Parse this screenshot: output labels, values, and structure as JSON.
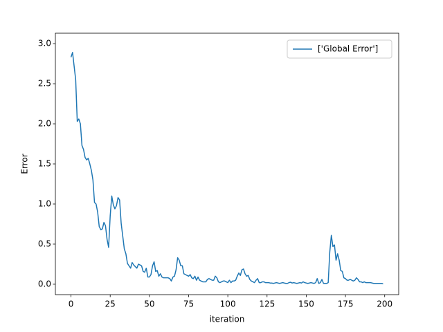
{
  "chart_data": {
    "type": "line",
    "xlabel": "iteration",
    "ylabel": "Error",
    "legend": "upper right",
    "x": [
      0,
      1,
      2,
      3,
      4,
      5,
      6,
      7,
      8,
      9,
      10,
      11,
      12,
      13,
      14,
      15,
      16,
      17,
      18,
      19,
      20,
      21,
      22,
      23,
      24,
      25,
      26,
      27,
      28,
      29,
      30,
      31,
      32,
      33,
      34,
      35,
      36,
      37,
      38,
      39,
      40,
      41,
      42,
      43,
      44,
      45,
      46,
      47,
      48,
      49,
      50,
      51,
      52,
      53,
      54,
      55,
      56,
      57,
      58,
      59,
      60,
      61,
      62,
      63,
      64,
      65,
      66,
      67,
      68,
      69,
      70,
      71,
      72,
      73,
      74,
      75,
      76,
      77,
      78,
      79,
      80,
      81,
      82,
      83,
      84,
      85,
      86,
      87,
      88,
      89,
      90,
      91,
      92,
      93,
      94,
      95,
      96,
      97,
      98,
      99,
      100,
      101,
      102,
      103,
      104,
      105,
      106,
      107,
      108,
      109,
      110,
      111,
      112,
      113,
      114,
      115,
      116,
      117,
      118,
      119,
      120,
      121,
      122,
      123,
      124,
      125,
      126,
      127,
      128,
      129,
      130,
      131,
      132,
      133,
      134,
      135,
      136,
      137,
      138,
      139,
      140,
      141,
      142,
      143,
      144,
      145,
      146,
      147,
      148,
      149,
      150,
      151,
      152,
      153,
      154,
      155,
      156,
      157,
      158,
      159,
      160,
      161,
      162,
      163,
      164,
      165,
      166,
      167,
      168,
      169,
      170,
      171,
      172,
      173,
      174,
      175,
      176,
      177,
      178,
      179,
      180,
      181,
      182,
      183,
      184,
      185,
      186,
      187,
      188,
      189,
      190,
      191,
      192,
      193,
      194,
      195,
      196,
      197,
      198,
      199
    ],
    "series": [
      {
        "name": "['Global Error']",
        "color": "#1f77b4",
        "values": [
          2.83,
          2.89,
          2.72,
          2.55,
          2.03,
          2.06,
          2.0,
          1.73,
          1.68,
          1.58,
          1.55,
          1.57,
          1.5,
          1.42,
          1.3,
          1.02,
          1.0,
          0.9,
          0.72,
          0.68,
          0.69,
          0.77,
          0.73,
          0.56,
          0.46,
          0.85,
          1.1,
          0.99,
          0.94,
          0.98,
          1.08,
          1.05,
          0.76,
          0.6,
          0.44,
          0.38,
          0.26,
          0.23,
          0.2,
          0.27,
          0.24,
          0.22,
          0.2,
          0.25,
          0.24,
          0.23,
          0.16,
          0.15,
          0.2,
          0.09,
          0.09,
          0.12,
          0.23,
          0.28,
          0.16,
          0.17,
          0.1,
          0.13,
          0.09,
          0.08,
          0.08,
          0.08,
          0.08,
          0.07,
          0.04,
          0.09,
          0.1,
          0.18,
          0.33,
          0.3,
          0.23,
          0.23,
          0.13,
          0.12,
          0.11,
          0.1,
          0.12,
          0.08,
          0.07,
          0.1,
          0.05,
          0.09,
          0.05,
          0.04,
          0.03,
          0.03,
          0.03,
          0.06,
          0.07,
          0.06,
          0.05,
          0.05,
          0.1,
          0.08,
          0.03,
          0.02,
          0.03,
          0.04,
          0.04,
          0.03,
          0.02,
          0.05,
          0.02,
          0.04,
          0.04,
          0.05,
          0.1,
          0.14,
          0.11,
          0.18,
          0.19,
          0.13,
          0.1,
          0.11,
          0.06,
          0.04,
          0.03,
          0.02,
          0.05,
          0.07,
          0.02,
          0.02,
          0.03,
          0.03,
          0.02,
          0.02,
          0.02,
          0.015,
          0.015,
          0.01,
          0.015,
          0.02,
          0.015,
          0.01,
          0.015,
          0.02,
          0.015,
          0.01,
          0.01,
          0.02,
          0.025,
          0.015,
          0.02,
          0.015,
          0.01,
          0.015,
          0.02,
          0.015,
          0.03,
          0.02,
          0.015,
          0.01,
          0.015,
          0.02,
          0.015,
          0.01,
          0.02,
          0.07,
          0.01,
          0.02,
          0.06,
          0.01,
          0.01,
          0.01,
          0.02,
          0.4,
          0.61,
          0.47,
          0.49,
          0.3,
          0.38,
          0.3,
          0.17,
          0.16,
          0.08,
          0.07,
          0.05,
          0.05,
          0.06,
          0.05,
          0.04,
          0.05,
          0.08,
          0.06,
          0.03,
          0.03,
          0.02,
          0.03,
          0.02,
          0.02,
          0.02,
          0.02,
          0.015,
          0.01,
          0.01,
          0.01,
          0.01,
          0.01,
          0.01,
          0.005
        ]
      }
    ],
    "xlim": [
      -9.95,
      208.95
    ],
    "xticks": [
      0,
      25,
      50,
      75,
      100,
      125,
      150,
      175,
      200
    ],
    "ylim": [
      -0.13,
      3.13
    ],
    "yticks": [
      {
        "value": 0,
        "label": "0.0"
      },
      0.5,
      {
        "value": 1,
        "label": "1.0"
      },
      1.5,
      {
        "value": 2,
        "label": "2.0"
      },
      2.5,
      {
        "value": 3,
        "label": "3.0"
      }
    ]
  }
}
